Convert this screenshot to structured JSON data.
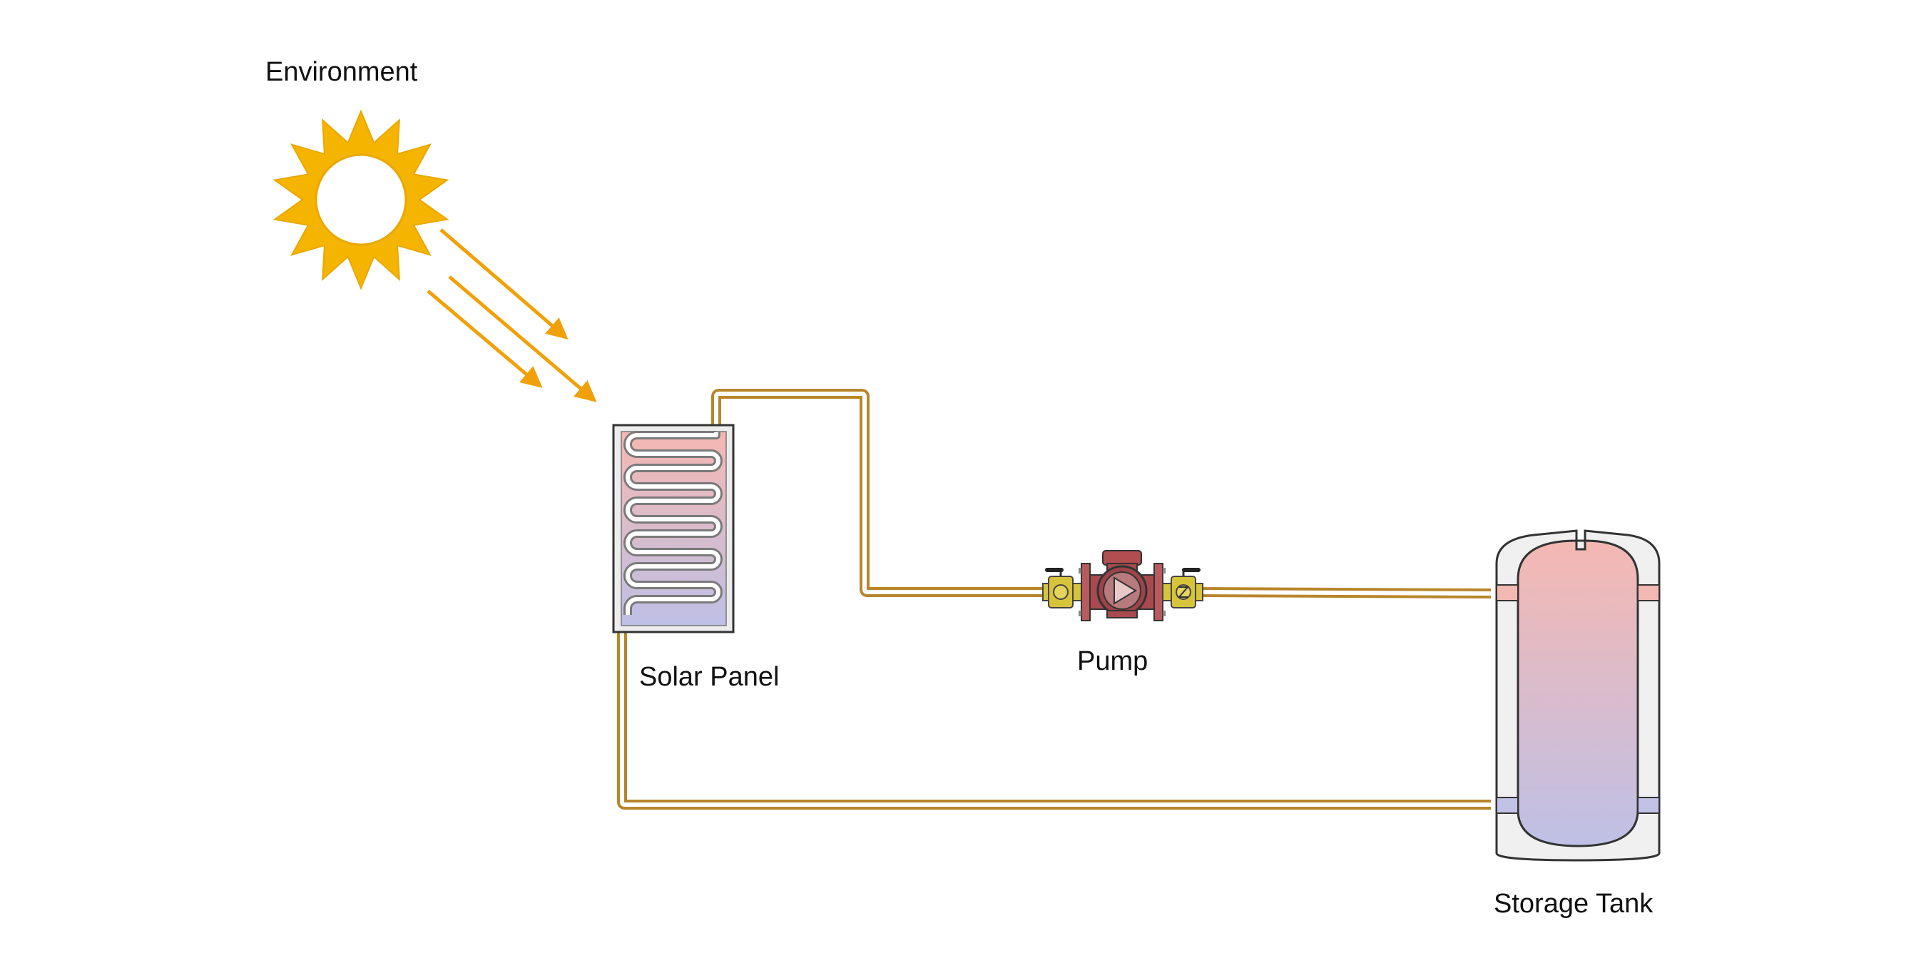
{
  "labels": {
    "environment": "Environment",
    "solar_panel": "Solar Panel",
    "pump": "Pump",
    "storage_tank": "Storage Tank"
  },
  "colors": {
    "sun": "#F5B400",
    "rays": "#F0A10A",
    "pipe": "#B8862A",
    "hot": "#F5B8B2",
    "cold": "#BEC0E6",
    "pump_body": "#A84A4E",
    "valve": "#D7C43A",
    "tank_shell": "#F0F0F0",
    "outline": "#333333"
  },
  "icons": {
    "environment": "sun-icon",
    "solar_panel": "solar-collector-icon",
    "pump": "circulation-pump-icon",
    "storage_tank": "storage-tank-icon"
  }
}
